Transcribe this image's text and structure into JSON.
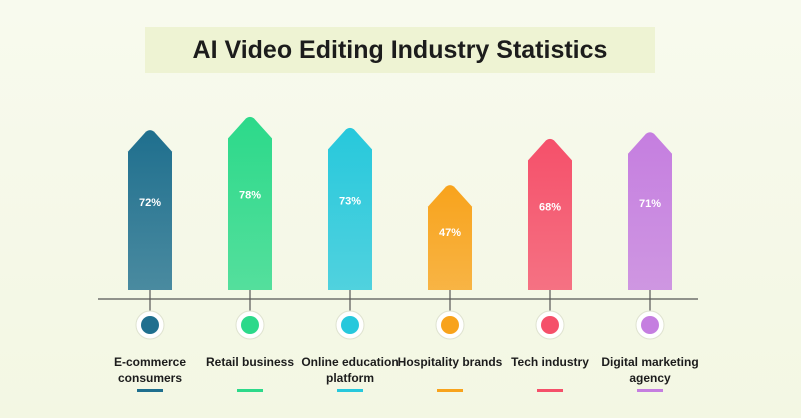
{
  "chart_data": {
    "type": "bar",
    "title": "AI Video Editing Industry Statistics",
    "categories": [
      "E-commerce consumers",
      "Retail business",
      "Online education platform",
      "Hospitality brands",
      "Tech industry",
      "Digital marketing agency"
    ],
    "values": [
      72,
      78,
      73,
      47,
      68,
      71
    ],
    "value_labels": [
      "72%",
      "78%",
      "73%",
      "47%",
      "68%",
      "71%"
    ],
    "colors": [
      "#1f6f8e",
      "#2cd98a",
      "#27c8dc",
      "#f8a31c",
      "#f5506a",
      "#c57ee0"
    ]
  }
}
